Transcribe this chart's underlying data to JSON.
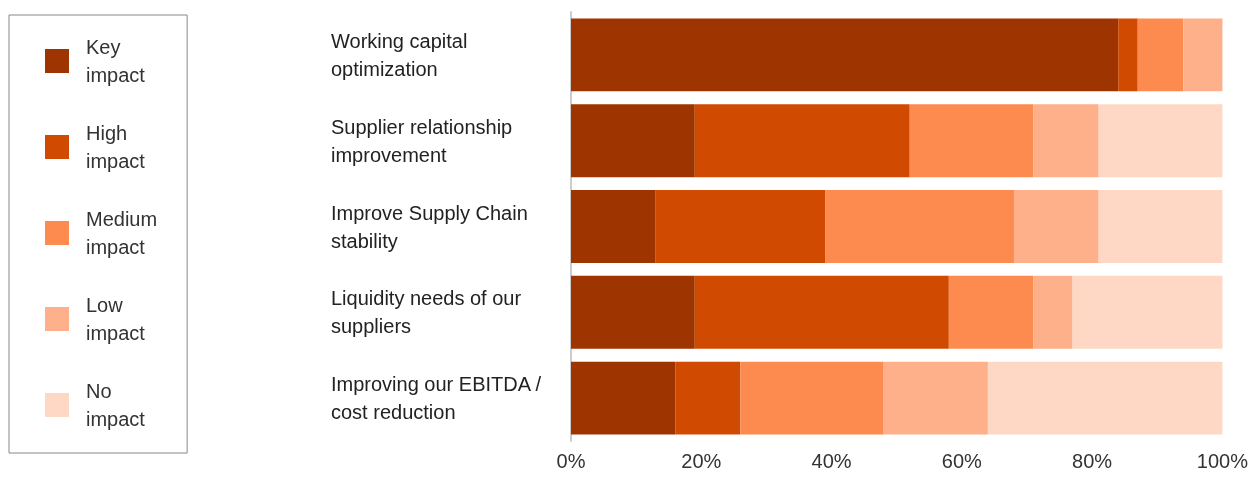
{
  "chart_data": {
    "type": "bar",
    "orientation": "horizontal",
    "stacked": true,
    "legend": "left",
    "categories": [
      "Working capital optimization",
      "Supplier relationship improvement",
      "Improve Supply Chain stability",
      "Liquidity needs of our suppliers",
      "Improving our EBITDA /cost reduction"
    ],
    "xlim": [
      0,
      100
    ],
    "xticks": [
      {
        "value": 0,
        "label": "0%"
      },
      {
        "value": 20,
        "label": "20%"
      },
      {
        "value": 40,
        "label": "40%"
      },
      {
        "value": 60,
        "label": "60%"
      },
      {
        "value": 80,
        "label": "80%"
      },
      {
        "value": 100,
        "label": "100%"
      }
    ],
    "series": [
      {
        "name": "Key impact",
        "color": "#9e3400",
        "values": [
          84,
          19,
          13,
          19,
          16
        ]
      },
      {
        "name": "High impact",
        "color": "#d04a02",
        "values": [
          3,
          33,
          26,
          39,
          10
        ]
      },
      {
        "name": "Medium impact",
        "color": "#fd8b50",
        "values": [
          7,
          19,
          29,
          13,
          22
        ]
      },
      {
        "name": "Low impact",
        "color": "#feb08b",
        "values": [
          6,
          10,
          13,
          6,
          16
        ]
      },
      {
        "name": "No impact",
        "color": "#fed8c5",
        "values": [
          0,
          19,
          19,
          23,
          36
        ]
      }
    ]
  }
}
